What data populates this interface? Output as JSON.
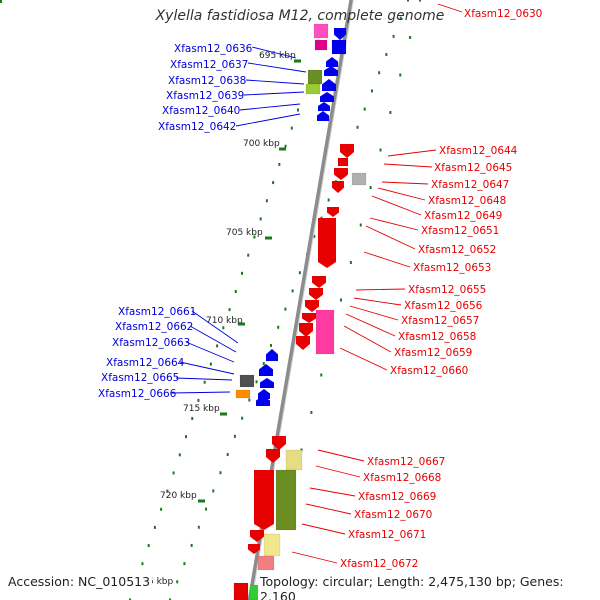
{
  "title": "Xylella fastidiosa M12, complete genome",
  "footer": {
    "accession": "Accession: NC_010513",
    "info": "Topology: circular; Length: 2,475,130 bp; Genes: 2,160"
  },
  "colors": {
    "forward": "#e60000",
    "reverse": "#0000dd",
    "backbone": "#8c8c8c",
    "tick": "#1a7a1a"
  },
  "scale_labels": [
    "695 kbp",
    "700 kbp",
    "705 kbp",
    "710 kbp",
    "715 kbp",
    "720 kbp",
    "5 kbp"
  ],
  "genes_left": [
    "Xfasm12_0636",
    "Xfasm12_0637",
    "Xfasm12_0638",
    "Xfasm12_0639",
    "Xfasm12_0640",
    "Xfasm12_0642",
    "Xfasm12_0661",
    "Xfasm12_0662",
    "Xfasm12_0663",
    "Xfasm12_0664",
    "Xfasm12_0665",
    "Xfasm12_0666"
  ],
  "genes_right": [
    "Xfasm12_0630",
    "Xfasm12_0644",
    "Xfasm12_0645",
    "Xfasm12_0647",
    "Xfasm12_0648",
    "Xfasm12_0649",
    "Xfasm12_0651",
    "Xfasm12_0652",
    "Xfasm12_0653",
    "Xfasm12_0655",
    "Xfasm12_0656",
    "Xfasm12_0657",
    "Xfasm12_0658",
    "Xfasm12_0659",
    "Xfasm12_0660",
    "Xfasm12_0667",
    "Xfasm12_0668",
    "Xfasm12_0669",
    "Xfasm12_0670",
    "Xfasm12_0671",
    "Xfasm12_0672"
  ]
}
